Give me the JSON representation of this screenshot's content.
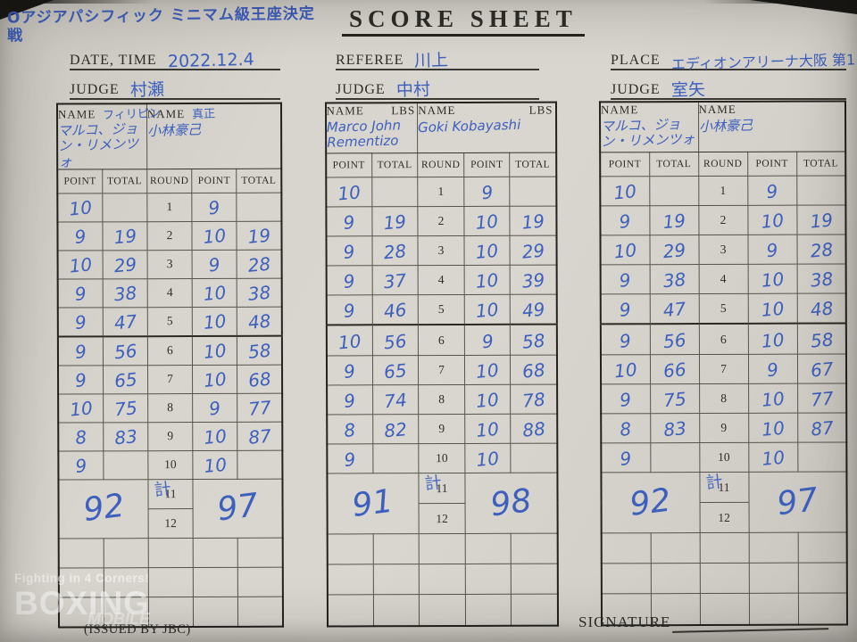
{
  "labels": {
    "name": "NAME",
    "lbs": "LBS",
    "point": "POINT",
    "total": "TOTAL",
    "round": "ROUND",
    "total_kanji": "計",
    "date": "DATE, TIME",
    "referee": "REFEREE",
    "place": "PLACE",
    "judge": "JUDGE",
    "signature": "SIGNATURE",
    "issued_by": "(ISSUED BY JBC)"
  },
  "header": {
    "event_title": "Oアジアパシフィック ミニマム級王座決定戦",
    "sheet_title": "SCORE SHEET",
    "date_value": "2022.12.4",
    "referee_value": "川上",
    "place_value": "エディオンアリーナ大阪 第1",
    "judges": [
      "村瀬",
      "中村",
      "室矢"
    ]
  },
  "watermark": {
    "line1": "Fighting in 4 Corners!",
    "line2": "BOXING",
    "line3": "MOBILE"
  },
  "colors": {
    "ink_blue": "#3d5fbe",
    "print_black": "#2e2c27",
    "paper": "#d8d5ce"
  },
  "tables": [
    {
      "left": {
        "note": "フィリピン",
        "name": "マルコ、ジョン・リメンツォ"
      },
      "right": {
        "note": "真正",
        "name": "小林豪己"
      },
      "rounds": [
        {
          "r": "1",
          "lp": "10",
          "lt": "",
          "rp": "9",
          "rt": ""
        },
        {
          "r": "2",
          "lp": "9",
          "lt": "19",
          "rp": "10",
          "rt": "19"
        },
        {
          "r": "3",
          "lp": "10",
          "lt": "29",
          "rp": "9",
          "rt": "28"
        },
        {
          "r": "4",
          "lp": "9",
          "lt": "38",
          "rp": "10",
          "rt": "38"
        },
        {
          "r": "5",
          "lp": "9",
          "lt": "47",
          "rp": "10",
          "rt": "48"
        },
        {
          "r": "6",
          "lp": "9",
          "lt": "56",
          "rp": "10",
          "rt": "58"
        },
        {
          "r": "7",
          "lp": "9",
          "lt": "65",
          "rp": "10",
          "rt": "68"
        },
        {
          "r": "8",
          "lp": "10",
          "lt": "75",
          "rp": "9",
          "rt": "77"
        },
        {
          "r": "9",
          "lp": "8",
          "lt": "83",
          "rp": "10",
          "rt": "87"
        },
        {
          "r": "10",
          "lp": "9",
          "lt": "",
          "rp": "10",
          "rt": ""
        }
      ],
      "round11": "11",
      "round12": "12",
      "left_total": "92",
      "right_total": "97"
    },
    {
      "left": {
        "note": "",
        "name": "Marco John Rementizo"
      },
      "right": {
        "note": "",
        "name": "Goki Kobayashi"
      },
      "rounds": [
        {
          "r": "1",
          "lp": "10",
          "lt": "",
          "rp": "9",
          "rt": ""
        },
        {
          "r": "2",
          "lp": "9",
          "lt": "19",
          "rp": "10",
          "rt": "19"
        },
        {
          "r": "3",
          "lp": "9",
          "lt": "28",
          "rp": "10",
          "rt": "29"
        },
        {
          "r": "4",
          "lp": "9",
          "lt": "37",
          "rp": "10",
          "rt": "39"
        },
        {
          "r": "5",
          "lp": "9",
          "lt": "46",
          "rp": "10",
          "rt": "49"
        },
        {
          "r": "6",
          "lp": "10",
          "lt": "56",
          "rp": "9",
          "rt": "58"
        },
        {
          "r": "7",
          "lp": "9",
          "lt": "65",
          "rp": "10",
          "rt": "68"
        },
        {
          "r": "8",
          "lp": "9",
          "lt": "74",
          "rp": "10",
          "rt": "78"
        },
        {
          "r": "9",
          "lp": "8",
          "lt": "82",
          "rp": "10",
          "rt": "88"
        },
        {
          "r": "10",
          "lp": "9",
          "lt": "",
          "rp": "10",
          "rt": ""
        }
      ],
      "round11": "11",
      "round12": "12",
      "left_total": "91",
      "right_total": "98"
    },
    {
      "left": {
        "note": "",
        "name": "マルコ、ジョン・リメンツォ"
      },
      "right": {
        "note": "",
        "name": "小林豪己"
      },
      "rounds": [
        {
          "r": "1",
          "lp": "10",
          "lt": "",
          "rp": "9",
          "rt": ""
        },
        {
          "r": "2",
          "lp": "9",
          "lt": "19",
          "rp": "10",
          "rt": "19"
        },
        {
          "r": "3",
          "lp": "10",
          "lt": "29",
          "rp": "9",
          "rt": "28"
        },
        {
          "r": "4",
          "lp": "9",
          "lt": "38",
          "rp": "10",
          "rt": "38"
        },
        {
          "r": "5",
          "lp": "9",
          "lt": "47",
          "rp": "10",
          "rt": "48"
        },
        {
          "r": "6",
          "lp": "9",
          "lt": "56",
          "rp": "10",
          "rt": "58"
        },
        {
          "r": "7",
          "lp": "10",
          "lt": "66",
          "rp": "9",
          "rt": "67"
        },
        {
          "r": "8",
          "lp": "9",
          "lt": "75",
          "rp": "10",
          "rt": "77"
        },
        {
          "r": "9",
          "lp": "8",
          "lt": "83",
          "rp": "10",
          "rt": "87"
        },
        {
          "r": "10",
          "lp": "9",
          "lt": "",
          "rp": "10",
          "rt": ""
        }
      ],
      "round11": "11",
      "round12": "12",
      "left_total": "92",
      "right_total": "97"
    }
  ]
}
